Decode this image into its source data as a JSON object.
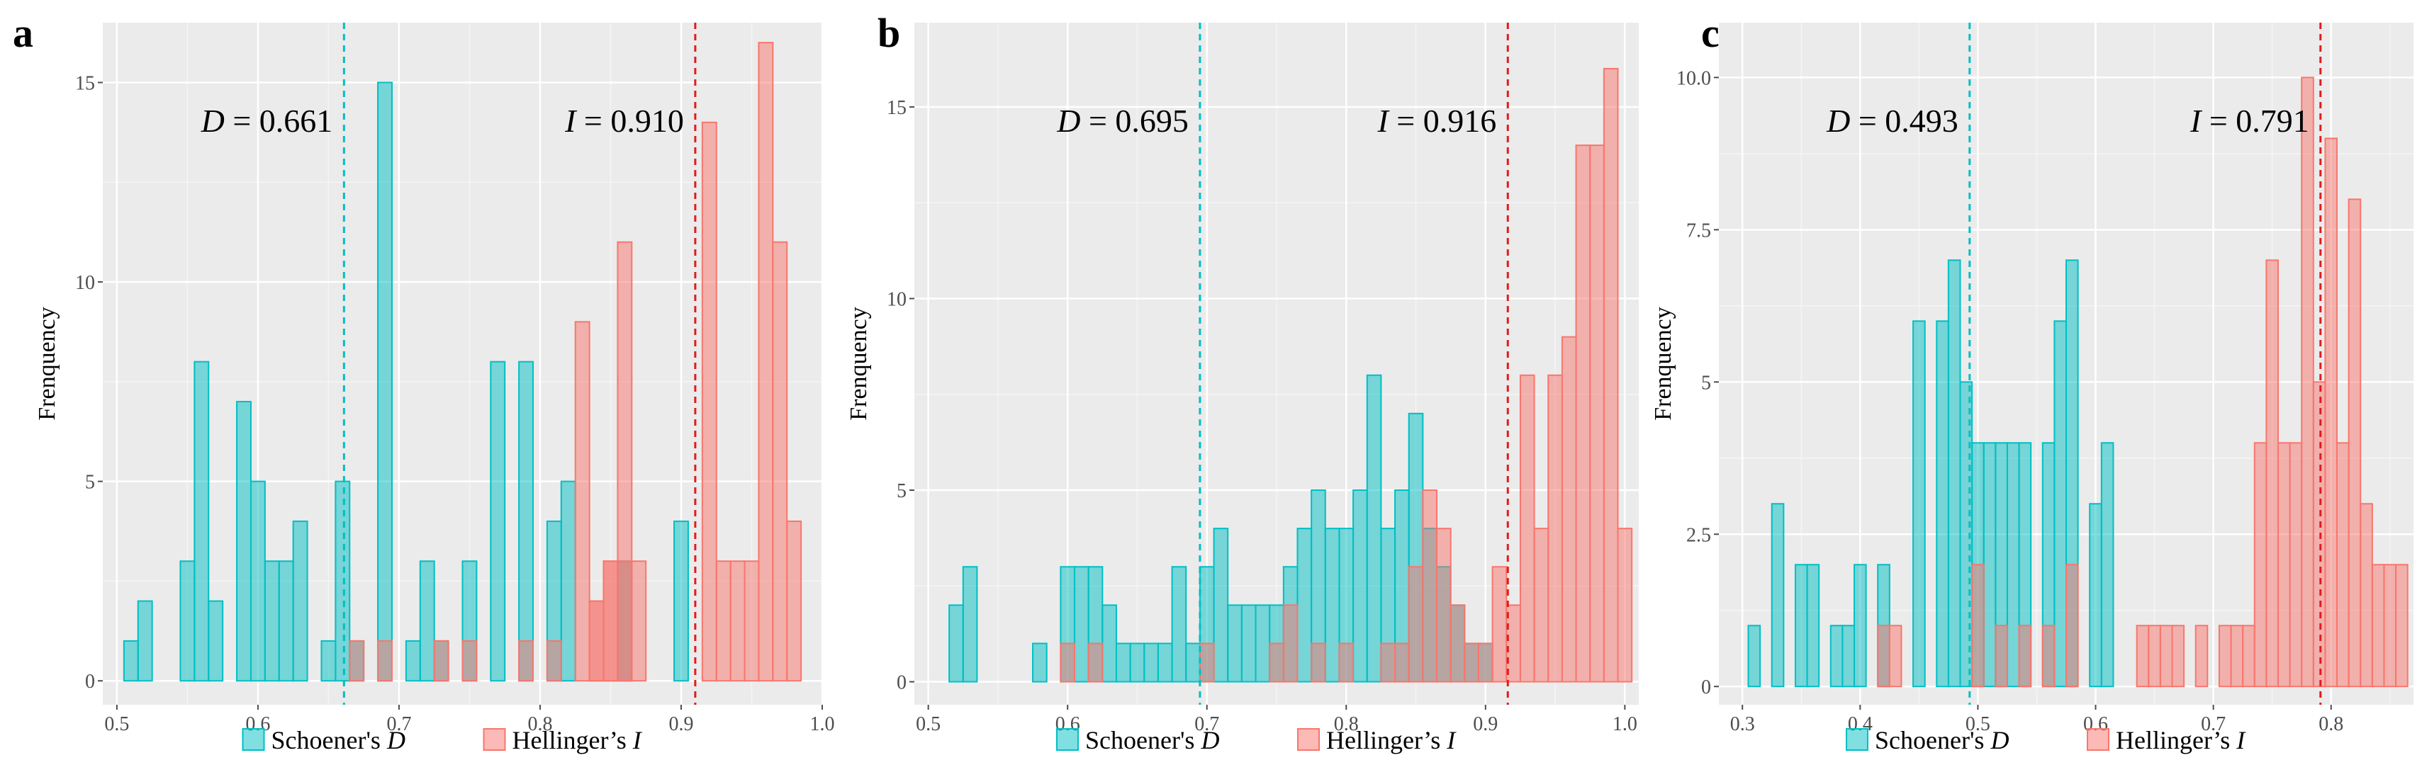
{
  "colors": {
    "D": "#00bfc4",
    "I": "#f8766d",
    "panel_bg": "#ebebeb",
    "grid": "#ffffff",
    "D_line": "#00bfc4",
    "I_line": "#e41a1c"
  },
  "chart_data": [
    {
      "type": "bar",
      "panel_label": "a",
      "ylabel": "Frenquency",
      "xlim": [
        0.49,
        1.0
      ],
      "ylim": [
        -0.6,
        16.5
      ],
      "xticks": [
        "0.5",
        "0.6",
        "0.7",
        "0.8",
        "0.9",
        "1.0"
      ],
      "xtick_values": [
        0.5,
        0.6,
        0.7,
        0.8,
        0.9,
        1.0
      ],
      "yticks": [
        "0",
        "5",
        "10",
        "15"
      ],
      "ytick_values": [
        0,
        5,
        10,
        15
      ],
      "binwidth": 0.01,
      "series": [
        {
          "name": "Schoener's D",
          "bins": [
            [
              0.51,
              1
            ],
            [
              0.52,
              2
            ],
            [
              0.55,
              3
            ],
            [
              0.56,
              8
            ],
            [
              0.57,
              2
            ],
            [
              0.59,
              7
            ],
            [
              0.6,
              5
            ],
            [
              0.61,
              3
            ],
            [
              0.62,
              3
            ],
            [
              0.63,
              4
            ],
            [
              0.65,
              1
            ],
            [
              0.66,
              5
            ],
            [
              0.67,
              1
            ],
            [
              0.69,
              15
            ],
            [
              0.71,
              1
            ],
            [
              0.72,
              3
            ],
            [
              0.73,
              1
            ],
            [
              0.75,
              3
            ],
            [
              0.77,
              8
            ],
            [
              0.79,
              8
            ],
            [
              0.81,
              4
            ],
            [
              0.82,
              5
            ],
            [
              0.86,
              3
            ],
            [
              0.9,
              4
            ]
          ]
        },
        {
          "name": "Hellinger's I",
          "bins": [
            [
              0.67,
              1
            ],
            [
              0.69,
              1
            ],
            [
              0.73,
              1
            ],
            [
              0.75,
              1
            ],
            [
              0.79,
              1
            ],
            [
              0.81,
              1
            ],
            [
              0.83,
              9
            ],
            [
              0.84,
              2
            ],
            [
              0.85,
              3
            ],
            [
              0.86,
              11
            ],
            [
              0.87,
              3
            ],
            [
              0.92,
              14
            ],
            [
              0.93,
              3
            ],
            [
              0.94,
              3
            ],
            [
              0.95,
              3
            ],
            [
              0.96,
              16
            ],
            [
              0.97,
              11
            ],
            [
              0.98,
              4
            ],
            [
              0.84,
              2
            ],
            [
              0.86,
              3
            ],
            [
              0.85,
              3
            ]
          ]
        }
      ],
      "vlines": [
        {
          "series": "Schoener's D",
          "x": 0.661
        },
        {
          "series": "Hellinger's I",
          "x": 0.91
        }
      ],
      "annotations": {
        "D_sym": "D",
        "D_val": " = 0.661",
        "I_sym": "I",
        "I_val": " = 0.910"
      },
      "legend": {
        "position": "bottom",
        "D_text": "Schoener's ",
        "D_sym": "D",
        "I_text": "Hellinger’s ",
        "I_sym": "I"
      }
    },
    {
      "type": "bar",
      "panel_label": "b",
      "ylabel": "Frenquency",
      "xlim": [
        0.49,
        1.01
      ],
      "ylim": [
        -0.6,
        17.2
      ],
      "xticks": [
        "0.5",
        "0.6",
        "0.7",
        "0.8",
        "0.9",
        "1.0"
      ],
      "xtick_values": [
        0.5,
        0.6,
        0.7,
        0.8,
        0.9,
        1.0
      ],
      "yticks": [
        "0",
        "5",
        "10",
        "15"
      ],
      "ytick_values": [
        0,
        5,
        10,
        15
      ],
      "binwidth": 0.01,
      "series": [
        {
          "name": "Schoener's D",
          "bins": [
            [
              0.52,
              2
            ],
            [
              0.53,
              3
            ],
            [
              0.58,
              1
            ],
            [
              0.6,
              3
            ],
            [
              0.61,
              3
            ],
            [
              0.62,
              3
            ],
            [
              0.63,
              2
            ],
            [
              0.64,
              1
            ],
            [
              0.65,
              1
            ],
            [
              0.66,
              1
            ],
            [
              0.67,
              1
            ],
            [
              0.68,
              3
            ],
            [
              0.69,
              1
            ],
            [
              0.7,
              3
            ],
            [
              0.71,
              4
            ],
            [
              0.72,
              2
            ],
            [
              0.73,
              2
            ],
            [
              0.74,
              2
            ],
            [
              0.75,
              2
            ],
            [
              0.76,
              3
            ],
            [
              0.77,
              4
            ],
            [
              0.78,
              5
            ],
            [
              0.79,
              4
            ],
            [
              0.8,
              4
            ],
            [
              0.81,
              5
            ],
            [
              0.82,
              8
            ],
            [
              0.83,
              4
            ],
            [
              0.84,
              5
            ],
            [
              0.85,
              7
            ],
            [
              0.86,
              4
            ],
            [
              0.87,
              3
            ],
            [
              0.88,
              2
            ],
            [
              0.89,
              1
            ],
            [
              0.9,
              1
            ]
          ]
        },
        {
          "name": "Hellinger's I",
          "bins": [
            [
              0.6,
              1
            ],
            [
              0.62,
              1
            ],
            [
              0.7,
              1
            ],
            [
              0.75,
              1
            ],
            [
              0.76,
              2
            ],
            [
              0.78,
              1
            ],
            [
              0.8,
              1
            ],
            [
              0.83,
              1
            ],
            [
              0.84,
              1
            ],
            [
              0.85,
              3
            ],
            [
              0.86,
              5
            ],
            [
              0.87,
              4
            ],
            [
              0.88,
              2
            ],
            [
              0.89,
              1
            ],
            [
              0.9,
              1
            ],
            [
              0.91,
              3
            ],
            [
              0.92,
              2
            ],
            [
              0.93,
              8
            ],
            [
              0.94,
              4
            ],
            [
              0.95,
              8
            ],
            [
              0.96,
              9
            ],
            [
              0.97,
              14
            ],
            [
              0.98,
              14
            ],
            [
              0.99,
              16
            ],
            [
              1.0,
              4
            ]
          ]
        }
      ],
      "vlines": [
        {
          "series": "Schoener's D",
          "x": 0.695
        },
        {
          "series": "Hellinger's I",
          "x": 0.916
        }
      ],
      "annotations": {
        "D_sym": "D",
        "D_val": " = 0.695",
        "I_sym": "I",
        "I_val": " = 0.916"
      },
      "legend": {
        "position": "bottom",
        "D_text": "Schoener's ",
        "D_sym": "D",
        "I_text": "Hellinger’s ",
        "I_sym": "I"
      }
    },
    {
      "type": "bar",
      "panel_label": "c",
      "ylabel": "Frenquency",
      "xlim": [
        0.28,
        0.87
      ],
      "ylim": [
        -0.3,
        10.9
      ],
      "xticks": [
        "0.3",
        "0.4",
        "0.5",
        "0.6",
        "0.7",
        "0.8"
      ],
      "xtick_values": [
        0.3,
        0.4,
        0.5,
        0.6,
        0.7,
        0.8
      ],
      "yticks": [
        "0",
        "2.5",
        "5",
        "7.5",
        "10.0"
      ],
      "ytick_values": [
        0,
        2.5,
        5,
        7.5,
        10
      ],
      "binwidth": 0.01,
      "series": [
        {
          "name": "Schoener's D",
          "bins": [
            [
              0.31,
              1
            ],
            [
              0.33,
              3
            ],
            [
              0.35,
              2
            ],
            [
              0.36,
              2
            ],
            [
              0.38,
              1
            ],
            [
              0.39,
              1
            ],
            [
              0.4,
              2
            ],
            [
              0.42,
              2
            ],
            [
              0.45,
              6
            ],
            [
              0.47,
              6
            ],
            [
              0.48,
              7
            ],
            [
              0.49,
              5
            ],
            [
              0.5,
              4
            ],
            [
              0.51,
              4
            ],
            [
              0.52,
              4
            ],
            [
              0.53,
              4
            ],
            [
              0.54,
              4
            ],
            [
              0.56,
              4
            ],
            [
              0.57,
              6
            ],
            [
              0.58,
              7
            ],
            [
              0.6,
              3
            ],
            [
              0.61,
              4
            ]
          ]
        },
        {
          "name": "Hellinger's I",
          "bins": [
            [
              0.42,
              1
            ],
            [
              0.43,
              1
            ],
            [
              0.5,
              2
            ],
            [
              0.52,
              1
            ],
            [
              0.54,
              1
            ],
            [
              0.56,
              1
            ],
            [
              0.58,
              2
            ],
            [
              0.64,
              1
            ],
            [
              0.65,
              1
            ],
            [
              0.66,
              1
            ],
            [
              0.67,
              1
            ],
            [
              0.69,
              1
            ],
            [
              0.71,
              1
            ],
            [
              0.72,
              1
            ],
            [
              0.73,
              1
            ],
            [
              0.74,
              4
            ],
            [
              0.75,
              7
            ],
            [
              0.76,
              4
            ],
            [
              0.77,
              4
            ],
            [
              0.78,
              10
            ],
            [
              0.79,
              5
            ],
            [
              0.8,
              9
            ],
            [
              0.81,
              4
            ],
            [
              0.82,
              8
            ],
            [
              0.83,
              3
            ],
            [
              0.84,
              2
            ],
            [
              0.85,
              2
            ],
            [
              0.86,
              2
            ]
          ]
        }
      ],
      "vlines": [
        {
          "series": "Schoener's D",
          "x": 0.493
        },
        {
          "series": "Hellinger's I",
          "x": 0.791
        }
      ],
      "annotations": {
        "D_sym": "D",
        "D_val": " = 0.493",
        "I_sym": "I",
        "I_val": " = 0.791"
      },
      "legend": {
        "position": "bottom",
        "D_text": "Schoener's ",
        "D_sym": "D",
        "I_text": "Hellinger’s ",
        "I_sym": "I"
      }
    }
  ]
}
